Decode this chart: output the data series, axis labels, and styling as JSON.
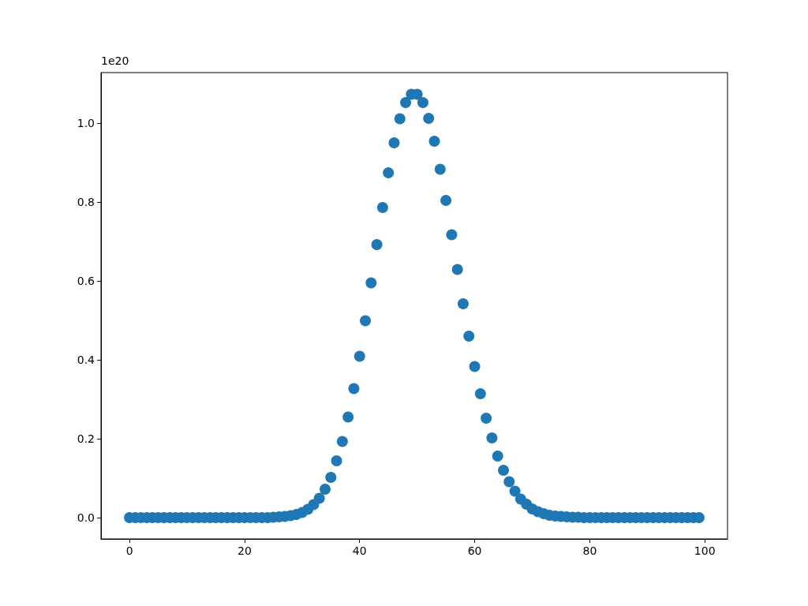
{
  "chart_data": {
    "type": "scatter",
    "marker": "circle",
    "annotations": [
      "1e20"
    ],
    "x": [
      0,
      1,
      2,
      3,
      4,
      5,
      6,
      7,
      8,
      9,
      10,
      11,
      12,
      13,
      14,
      15,
      16,
      17,
      18,
      19,
      20,
      21,
      22,
      23,
      24,
      25,
      26,
      27,
      28,
      29,
      30,
      31,
      32,
      33,
      34,
      35,
      36,
      37,
      38,
      39,
      40,
      41,
      42,
      43,
      44,
      45,
      46,
      47,
      48,
      49,
      50,
      51,
      52,
      53,
      54,
      55,
      56,
      57,
      58,
      59,
      60,
      61,
      62,
      63,
      64,
      65,
      66,
      67,
      68,
      69,
      70,
      71,
      72,
      73,
      74,
      75,
      76,
      77,
      78,
      79,
      80,
      81,
      82,
      83,
      84,
      85,
      86,
      87,
      88,
      89,
      90,
      91,
      92,
      93,
      94,
      95,
      96,
      97,
      98,
      99
    ],
    "series": [
      {
        "color": "#1f77b4",
        "values": [
          0,
          0,
          0,
          0,
          0,
          0,
          0,
          0,
          0,
          0,
          0,
          0,
          0,
          0,
          0,
          0,
          0,
          0,
          0,
          0,
          0,
          0,
          0,
          0,
          0,
          0.001,
          0.002,
          0.003,
          0.005,
          0.008,
          0.013,
          0.021,
          0.033,
          0.049,
          0.072,
          0.102,
          0.144,
          0.193,
          0.255,
          0.327,
          0.409,
          0.499,
          0.595,
          0.692,
          0.786,
          0.874,
          0.95,
          1.011,
          1.052,
          1.073,
          1.073,
          1.052,
          1.012,
          0.954,
          0.883,
          0.804,
          0.717,
          0.629,
          0.542,
          0.46,
          0.383,
          0.314,
          0.252,
          0.202,
          0.156,
          0.12,
          0.091,
          0.067,
          0.047,
          0.034,
          0.022,
          0.015,
          0.01,
          0.006,
          0.004,
          0.003,
          0.002,
          0.001,
          0.001,
          0,
          0,
          0,
          0,
          0,
          0,
          0,
          0,
          0,
          0,
          0,
          0,
          0,
          0,
          0,
          0,
          0,
          0,
          0,
          0,
          0
        ]
      }
    ],
    "xlim": [
      -4.95,
      103.95
    ],
    "xticks": [
      0,
      20,
      40,
      60,
      80,
      100
    ],
    "ylim": [
      -0.054,
      1.128
    ],
    "yticks": [
      {
        "value": 0,
        "label": "0.0"
      },
      0.2,
      0.4,
      0.6,
      0.8,
      {
        "value": 1,
        "label": "1.0"
      }
    ]
  }
}
